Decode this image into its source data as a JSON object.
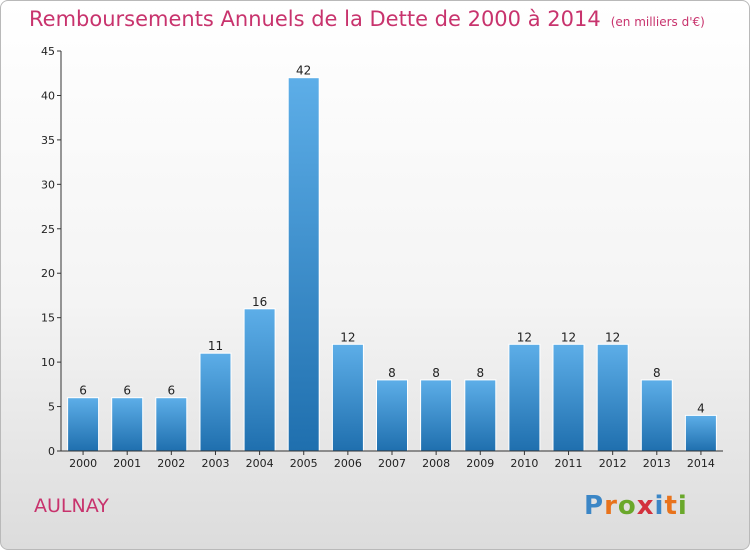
{
  "page": {
    "title": "Remboursements Annuels de la Dette de 2000 à 2014",
    "subtitle": "(en milliers d'€)",
    "town": "AULNAY",
    "logo_letters": [
      "P",
      "r",
      "o",
      "x",
      "i",
      "t",
      "i"
    ],
    "logo_colors": [
      "#3b86c6",
      "#e8731c",
      "#6aa82b",
      "#d3313d",
      "#3b86c6",
      "#e8731c",
      "#6aa82b"
    ]
  },
  "chart_data": {
    "type": "bar",
    "title": "Remboursements Annuels de la Dette de 2000 à 2014",
    "subtitle": "(en milliers d'€)",
    "categories": [
      "2000",
      "2001",
      "2002",
      "2003",
      "2004",
      "2005",
      "2006",
      "2007",
      "2008",
      "2009",
      "2010",
      "2011",
      "2012",
      "2013",
      "2014"
    ],
    "values": [
      6,
      6,
      6,
      11,
      16,
      42,
      12,
      8,
      8,
      8,
      12,
      12,
      12,
      8,
      4
    ],
    "ylim": [
      0,
      45
    ],
    "yticks": [
      0,
      5,
      10,
      15,
      20,
      25,
      30,
      35,
      40,
      45
    ],
    "grid": false,
    "colors": {
      "bar_top": "#5daee8",
      "bar_bottom": "#1f6fae",
      "axis": "#333333"
    }
  }
}
